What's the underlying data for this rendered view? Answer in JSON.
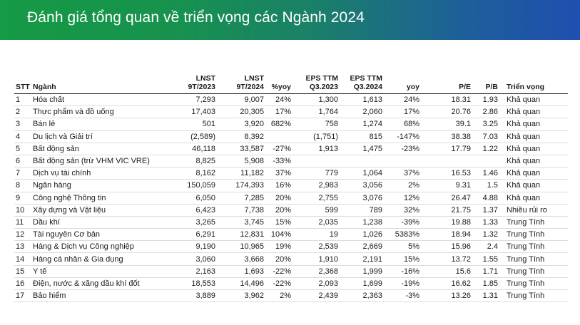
{
  "title": "Đánh giá tổng quan về triển vọng các Ngành 2024",
  "headers": {
    "stt": "STT",
    "nganh": "Ngành",
    "lnst_2023": [
      "LNST",
      "9T/2023"
    ],
    "lnst_2024": [
      "LNST",
      "9T/2024"
    ],
    "yoy1": "%yoy",
    "eps_2023": [
      "EPS TTM",
      "Q3.2023"
    ],
    "eps_2024": [
      "EPS TTM",
      "Q3.2024"
    ],
    "yoy2": "yoy",
    "pe": "P/E",
    "pb": "P/B",
    "outlook": "Triển vọng"
  },
  "rows": [
    {
      "stt": "1",
      "nganh": "Hóa chất",
      "lnst2023": "7,293",
      "lnst2024": "9,007",
      "yoy1": "24%",
      "eps2023": "1,300",
      "eps2024": "1,613",
      "yoy2": "24%",
      "pe": "18.31",
      "pb": "1.93",
      "outlook": "Khả quan"
    },
    {
      "stt": "2",
      "nganh": "Thực phẩm và đồ uống",
      "lnst2023": "17,403",
      "lnst2024": "20,305",
      "yoy1": "17%",
      "eps2023": "1,764",
      "eps2024": "2,060",
      "yoy2": "17%",
      "pe": "20.76",
      "pb": "2.86",
      "outlook": "Khả quan"
    },
    {
      "stt": "3",
      "nganh": "Bán lẻ",
      "lnst2023": "501",
      "lnst2024": "3,920",
      "yoy1": "682%",
      "eps2023": "758",
      "eps2024": "1,274",
      "yoy2": "68%",
      "pe": "39.1",
      "pb": "3.25",
      "outlook": "Khả quan"
    },
    {
      "stt": "4",
      "nganh": "Du lịch và Giải trí",
      "lnst2023": "(2,589)",
      "lnst2024": "8,392",
      "yoy1": "",
      "eps2023": "(1,751)",
      "eps2024": "815",
      "yoy2": "-147%",
      "pe": "38.38",
      "pb": "7.03",
      "outlook": "Khả quan"
    },
    {
      "stt": "5",
      "nganh": "Bất động sản",
      "lnst2023": "46,118",
      "lnst2024": "33,587",
      "yoy1": "-27%",
      "eps2023": "1,913",
      "eps2024": "1,475",
      "yoy2": "-23%",
      "pe": "17.79",
      "pb": "1.22",
      "outlook": "Khả quan"
    },
    {
      "stt": "6",
      "nganh": "Bất động sản (trừ VHM VIC VRE)",
      "lnst2023": "8,825",
      "lnst2024": "5,908",
      "yoy1": "-33%",
      "eps2023": "",
      "eps2024": "",
      "yoy2": "",
      "pe": "",
      "pb": "",
      "outlook": "Khả quan"
    },
    {
      "stt": "7",
      "nganh": "Dịch vụ tài chính",
      "lnst2023": "8,162",
      "lnst2024": "11,182",
      "yoy1": "37%",
      "eps2023": "779",
      "eps2024": "1,064",
      "yoy2": "37%",
      "pe": "16.53",
      "pb": "1.46",
      "outlook": "Khả quan"
    },
    {
      "stt": "8",
      "nganh": "Ngân hàng",
      "lnst2023": "150,059",
      "lnst2024": "174,393",
      "yoy1": "16%",
      "eps2023": "2,983",
      "eps2024": "3,056",
      "yoy2": "2%",
      "pe": "9.31",
      "pb": "1.5",
      "outlook": "Khả quan"
    },
    {
      "stt": "9",
      "nganh": "Công nghệ Thông tin",
      "lnst2023": "6,050",
      "lnst2024": "7,285",
      "yoy1": "20%",
      "eps2023": "2,755",
      "eps2024": "3,076",
      "yoy2": "12%",
      "pe": "26.47",
      "pb": "4.88",
      "outlook": "Khả quan"
    },
    {
      "stt": "10",
      "nganh": "Xây dựng và Vật liệu",
      "lnst2023": "6,423",
      "lnst2024": "7,738",
      "yoy1": "20%",
      "eps2023": "599",
      "eps2024": "789",
      "yoy2": "32%",
      "pe": "21.75",
      "pb": "1.37",
      "outlook": "Nhiều rủi ro"
    },
    {
      "stt": "11",
      "nganh": "Dầu khí",
      "lnst2023": "3,265",
      "lnst2024": "3,745",
      "yoy1": "15%",
      "eps2023": "2,035",
      "eps2024": "1,238",
      "yoy2": "-39%",
      "pe": "19.88",
      "pb": "1.33",
      "outlook": "Trung Tính"
    },
    {
      "stt": "12",
      "nganh": "Tài nguyên Cơ bản",
      "lnst2023": "6,291",
      "lnst2024": "12,831",
      "yoy1": "104%",
      "eps2023": "19",
      "eps2024": "1,026",
      "yoy2": "5383%",
      "pe": "18.94",
      "pb": "1.32",
      "outlook": "Trung Tính"
    },
    {
      "stt": "13",
      "nganh": "Hàng & Dịch vụ Công nghiệp",
      "lnst2023": "9,190",
      "lnst2024": "10,965",
      "yoy1": "19%",
      "eps2023": "2,539",
      "eps2024": "2,669",
      "yoy2": "5%",
      "pe": "15.96",
      "pb": "2.4",
      "outlook": "Trung Tính"
    },
    {
      "stt": "14",
      "nganh": "Hàng cá nhân & Gia dụng",
      "lnst2023": "3,060",
      "lnst2024": "3,668",
      "yoy1": "20%",
      "eps2023": "1,910",
      "eps2024": "2,191",
      "yoy2": "15%",
      "pe": "13.72",
      "pb": "1.55",
      "outlook": "Trung Tính"
    },
    {
      "stt": "15",
      "nganh": "Y tế",
      "lnst2023": "2,163",
      "lnst2024": "1,693",
      "yoy1": "-22%",
      "eps2023": "2,368",
      "eps2024": "1,999",
      "yoy2": "-16%",
      "pe": "15.6",
      "pb": "1.71",
      "outlook": "Trung Tính"
    },
    {
      "stt": "16",
      "nganh": "Điện, nước & xăng dầu khí đốt",
      "lnst2023": "18,553",
      "lnst2024": "14,496",
      "yoy1": "-22%",
      "eps2023": "2,093",
      "eps2024": "1,699",
      "yoy2": "-19%",
      "pe": "16.62",
      "pb": "1.85",
      "outlook": "Trung Tính"
    },
    {
      "stt": "17",
      "nganh": "Bảo hiểm",
      "lnst2023": "3,889",
      "lnst2024": "3,962",
      "yoy1": "2%",
      "eps2023": "2,439",
      "eps2024": "2,363",
      "yoy2": "-3%",
      "pe": "13.26",
      "pb": "1.31",
      "outlook": "Trung Tính"
    }
  ]
}
